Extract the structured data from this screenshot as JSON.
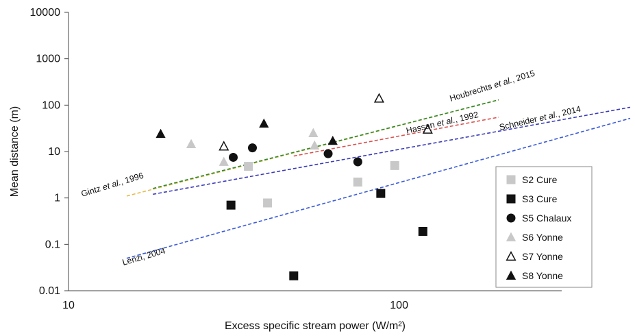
{
  "chart_data": {
    "type": "scatter",
    "xscale": "log",
    "yscale": "log",
    "xlim": [
      10,
      500
    ],
    "ylim": [
      0.01,
      10000
    ],
    "xlabel": "Excess specific stream power (W/m²)",
    "ylabel": "Mean distance (m)",
    "x_ticks": [
      10,
      100
    ],
    "x_tick_labels": [
      "10",
      "100"
    ],
    "y_ticks": [
      0.01,
      0.1,
      1,
      10,
      100,
      1000,
      10000
    ],
    "y_tick_labels": [
      "0.01",
      "0.1",
      "1",
      "10",
      "100",
      "1000",
      "10000"
    ],
    "grid": false,
    "legend_position": "bottom-right",
    "series": [
      {
        "name": "S2 Cure",
        "marker": "square",
        "color": "#c8c8c8",
        "filled": true,
        "x": [
          35,
          40,
          75,
          97
        ],
        "y": [
          4.8,
          0.78,
          2.2,
          5
        ]
      },
      {
        "name": "S3 Cure",
        "marker": "square",
        "color": "#111111",
        "filled": true,
        "x": [
          31,
          48,
          88,
          118
        ],
        "y": [
          0.7,
          0.021,
          1.25,
          0.19
        ]
      },
      {
        "name": "S5 Chalaux",
        "marker": "circle",
        "color": "#111111",
        "filled": true,
        "x": [
          31.5,
          36,
          61,
          75
        ],
        "y": [
          7.5,
          12,
          9,
          6
        ]
      },
      {
        "name": "S6 Yonne",
        "marker": "triangle",
        "color": "#c8c8c8",
        "filled": true,
        "x": [
          23.5,
          29.5,
          55,
          55.5
        ],
        "y": [
          14.5,
          6,
          25,
          13.5
        ]
      },
      {
        "name": "S7 Yonne",
        "marker": "triangle",
        "color": "#111111",
        "filled": false,
        "x": [
          29.5,
          87,
          122
        ],
        "y": [
          13,
          140,
          30
        ]
      },
      {
        "name": "S8 Yonne",
        "marker": "triangle",
        "color": "#111111",
        "filled": true,
        "x": [
          19,
          39,
          63
        ],
        "y": [
          24,
          40,
          17
        ]
      }
    ],
    "reference_lines": [
      {
        "label": "Gintz et al., 1996",
        "color": "#e8b84a",
        "x": [
          15,
          200
        ],
        "y": [
          1.1,
          130
        ]
      },
      {
        "label": "Houbrechts et al., 2015",
        "color": "#2e8b2e",
        "x": [
          18,
          200
        ],
        "y": [
          1.6,
          130
        ]
      },
      {
        "label": "Hassan et al., 1992",
        "color": "#d9534f",
        "x": [
          48,
          200
        ],
        "y": [
          8,
          55
        ]
      },
      {
        "label": "Schneider et al., 2014",
        "color": "#3b3bb8",
        "x": [
          18,
          500
        ],
        "y": [
          1.2,
          90
        ]
      },
      {
        "label": "Lenzi, 2004",
        "color": "#3b5bd8",
        "x": [
          15,
          500
        ],
        "y": [
          0.05,
          52
        ]
      }
    ],
    "annotations": [
      {
        "text_parts": [
          "Gintz ",
          "et al.",
          ", 1996"
        ],
        "line": 0
      },
      {
        "text_parts": [
          "Houbrechts ",
          "et al.",
          ", 2015"
        ],
        "line": 1
      },
      {
        "text_parts": [
          "Hassan ",
          "et al.",
          ", 1992"
        ],
        "line": 2
      },
      {
        "text_parts": [
          "Schneider ",
          "et al.",
          ", 2014"
        ],
        "line": 3
      },
      {
        "text_parts": [
          "Lenzi, 2004"
        ],
        "line": 4
      }
    ]
  }
}
